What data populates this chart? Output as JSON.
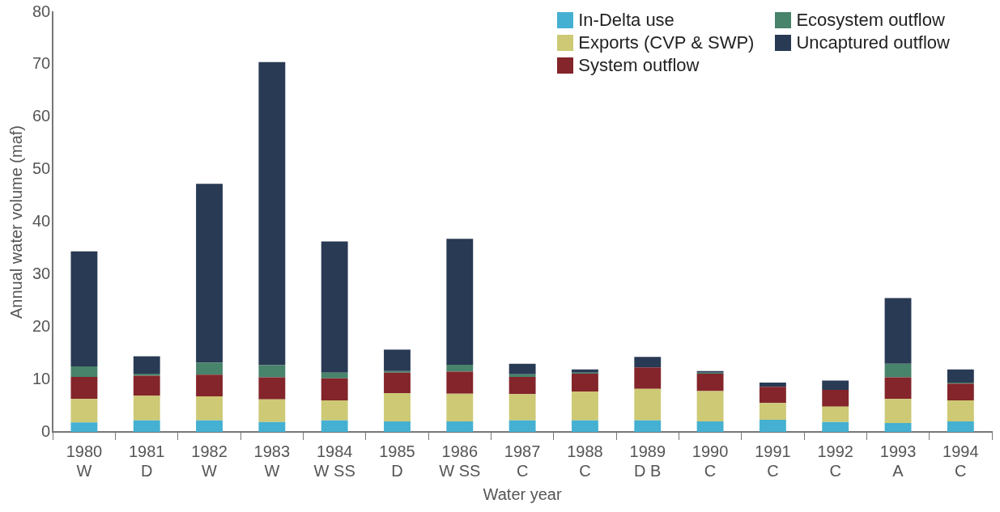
{
  "chart_data": {
    "type": "bar",
    "stacked": true,
    "xlabel": "Water year",
    "ylabel": "Annual water volume (maf)",
    "categories": [
      "1980\nW",
      "1981\nD",
      "1982\nW",
      "1983\nW",
      "1984\nW SS",
      "1985\nD",
      "1986\nW SS",
      "1987\nC",
      "1988\nC",
      "1989\nD B",
      "1990\nC",
      "1991\nC",
      "1992\nC",
      "1993\nA",
      "1994\nC"
    ],
    "ylim": [
      0,
      80
    ],
    "yticks": [
      0,
      10,
      20,
      30,
      40,
      50,
      60,
      70,
      80
    ],
    "grid": false,
    "legend": "top right",
    "series": [
      {
        "name": "In-Delta use",
        "color": "#45b0d1",
        "values": [
          1.8,
          2.2,
          2.2,
          1.9,
          2.2,
          2.0,
          2.0,
          2.2,
          2.2,
          2.2,
          2.0,
          2.3,
          1.9,
          1.7,
          2.0
        ]
      },
      {
        "name": "Exports (CVP & SWP)",
        "color": "#cdc975",
        "values": [
          4.5,
          4.7,
          4.6,
          4.3,
          3.8,
          5.4,
          5.3,
          5.0,
          5.5,
          6.0,
          5.8,
          3.2,
          2.9,
          4.6,
          4.0
        ]
      },
      {
        "name": "System outflow",
        "color": "#83252a",
        "values": [
          4.2,
          3.8,
          4.1,
          4.2,
          4.2,
          3.9,
          4.2,
          3.3,
          3.4,
          4.1,
          3.3,
          3.1,
          3.2,
          4.1,
          3.2
        ]
      },
      {
        "name": "Ecosystem outflow",
        "color": "#48836b",
        "values": [
          2.0,
          0.4,
          2.3,
          2.3,
          1.1,
          0.3,
          1.3,
          0.5,
          0.2,
          null,
          0.2,
          0,
          null,
          2.6,
          0.2
        ]
      },
      {
        "name": "Uncaptured outflow",
        "color": "#293a54",
        "values": [
          21.9,
          3.3,
          34.1,
          57.8,
          25.0,
          4.1,
          24.0,
          2.0,
          0.6,
          2.0,
          0.3,
          0.8,
          1.8,
          12.5,
          2.5
        ]
      }
    ]
  }
}
